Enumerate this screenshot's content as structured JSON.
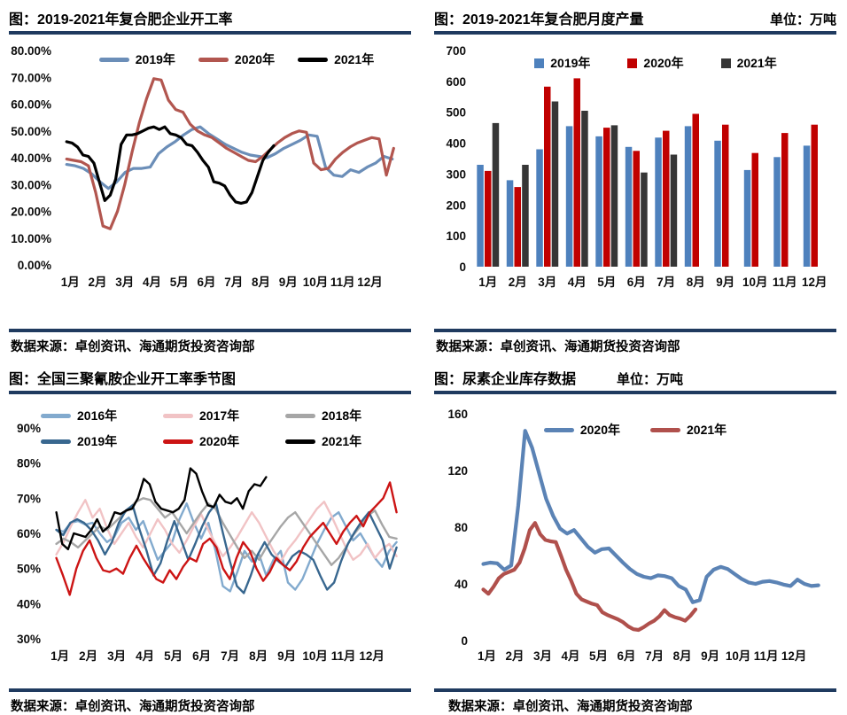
{
  "page": {
    "background": "#ffffff",
    "accent_color": "#1f3a5f"
  },
  "source_label": "数据来源：卓创资讯、海通期货投资咨询部",
  "chart_data": [
    {
      "type": "line",
      "title": "图：2019-2021年复合肥企业开工率",
      "unit": "",
      "source": "数据来源：卓创资讯、海通期货投资咨询部",
      "legend_position": "top-center",
      "grid": false,
      "ylim": [
        0,
        80
      ],
      "yticks": [
        {
          "v": 80,
          "label": "80.00%"
        },
        {
          "v": 70,
          "label": "70.00%"
        },
        {
          "v": 60,
          "label": "60.00%"
        },
        {
          "v": 50,
          "label": "50.00%"
        },
        {
          "v": 40,
          "label": "40.00%"
        },
        {
          "v": 30,
          "label": "30.00%"
        },
        {
          "v": 20,
          "label": "20.00%"
        },
        {
          "v": 10,
          "label": "10.00%"
        },
        {
          "v": 0,
          "label": "0.00%"
        }
      ],
      "x_labels": [
        "1月",
        "2月",
        "3月",
        "4月",
        "5月",
        "6月",
        "7月",
        "8月",
        "9月",
        "10月",
        "11月",
        "12月"
      ],
      "series": [
        {
          "name": "2019年",
          "color": "#6b8eb8",
          "x_start": 1,
          "x_end": 12.95,
          "values": [
            37.5,
            37,
            36,
            34,
            31,
            28.5,
            31,
            34.5,
            36,
            36,
            36.5,
            41.5,
            44,
            46,
            48.5,
            50.5,
            51.5,
            49,
            47,
            45,
            43.5,
            42,
            41,
            40.5,
            40,
            41.5,
            43.5,
            45,
            46.5,
            48.5,
            48,
            36.5,
            33.5,
            33,
            35.5,
            34.5,
            36.5,
            38,
            40.5,
            39.5
          ]
        },
        {
          "name": "2020年",
          "color": "#b2564f",
          "x_start": 1,
          "x_end": 13,
          "values": [
            39.5,
            39,
            38.5,
            37,
            27,
            14.5,
            13.5,
            20,
            30,
            42,
            53,
            62,
            69.5,
            69,
            61.5,
            58,
            57,
            52.5,
            50,
            48.5,
            47.5,
            45.5,
            43.5,
            42,
            40.5,
            39,
            38.5,
            40.5,
            43,
            45.5,
            47.5,
            49,
            50,
            49.5,
            38,
            35.5,
            36,
            39.5,
            42,
            44,
            45.5,
            46.5,
            47.5,
            47,
            33.5,
            43.5
          ]
        },
        {
          "name": "2021年",
          "color": "#000000",
          "x_start": 1,
          "x_end": 8.6,
          "values": [
            46,
            45.5,
            44,
            41,
            40.5,
            38,
            31,
            24,
            26,
            32,
            45,
            48.5,
            48.5,
            49,
            50,
            51,
            51.5,
            50.5,
            51.5,
            49,
            48.5,
            47.5,
            45,
            44.5,
            42,
            39,
            36.5,
            31,
            30.5,
            29.5,
            26,
            23.5,
            23,
            23.5,
            27,
            33,
            39,
            42,
            44.5
          ]
        }
      ]
    },
    {
      "type": "bar",
      "title": "图：2019-2021年复合肥月度产量",
      "unit": "单位：万吨",
      "source": "数据来源：卓创资讯、海通期货投资咨询部",
      "legend_position": "top-center",
      "grid": false,
      "ylim": [
        0,
        700
      ],
      "yticks": [
        {
          "v": 700,
          "label": "700"
        },
        {
          "v": 600,
          "label": "600"
        },
        {
          "v": 500,
          "label": "500"
        },
        {
          "v": 400,
          "label": "400"
        },
        {
          "v": 300,
          "label": "300"
        },
        {
          "v": 200,
          "label": "200"
        },
        {
          "v": 100,
          "label": "100"
        },
        {
          "v": 0,
          "label": "0"
        }
      ],
      "categories": [
        "1月",
        "2月",
        "3月",
        "4月",
        "5月",
        "6月",
        "7月",
        "8月",
        "9月",
        "10月",
        "11月",
        "12月"
      ],
      "series": [
        {
          "name": "2019年",
          "color": "#4e81bd",
          "values": [
            330,
            280,
            380,
            455,
            422,
            388,
            418,
            455,
            408,
            313,
            355,
            392
          ]
        },
        {
          "name": "2020年",
          "color": "#c00000",
          "values": [
            310,
            258,
            583,
            610,
            450,
            375,
            440,
            495,
            460,
            368,
            433,
            460
          ]
        },
        {
          "name": "2021年",
          "color": "#363636",
          "values": [
            465,
            330,
            535,
            505,
            458,
            305,
            363
          ]
        }
      ]
    },
    {
      "type": "line",
      "title": "图：全国三聚氰胺企业开工率季节图",
      "unit": "",
      "source": "数据来源：卓创资讯、海通期货投资咨询部",
      "legend_position": "top-grid-3col",
      "grid": false,
      "ylim": [
        30,
        90
      ],
      "yticks": [
        {
          "v": 90,
          "label": "90%"
        },
        {
          "v": 80,
          "label": "80%"
        },
        {
          "v": 70,
          "label": "70%"
        },
        {
          "v": 60,
          "label": "60%"
        },
        {
          "v": 50,
          "label": "50%"
        },
        {
          "v": 40,
          "label": "40%"
        },
        {
          "v": 30,
          "label": "30%"
        }
      ],
      "x_labels": [
        "1月",
        "2月",
        "3月",
        "4月",
        "5月",
        "6月",
        "7月",
        "8月",
        "9月",
        "10月",
        "11月",
        "12月"
      ],
      "series": [
        {
          "name": "2016年",
          "color": "#82aace",
          "x_start": 1,
          "x_end": 13,
          "values": [
            61,
            60.5,
            63,
            63.5,
            62.5,
            63,
            60,
            57.5,
            59,
            63,
            64.5,
            61,
            63.5,
            58,
            52.5,
            55,
            57.5,
            64,
            68.5,
            63,
            58.5,
            63,
            55,
            45,
            43.5,
            49,
            55,
            52,
            54,
            48,
            52.5,
            55,
            46,
            44,
            47,
            52,
            57,
            61,
            64.5,
            66,
            62,
            58,
            60,
            56.5,
            53,
            50.5,
            55,
            57.5
          ]
        },
        {
          "name": "2017年",
          "color": "#f1c3c5",
          "x_start": 1,
          "x_end": 13,
          "values": [
            54,
            57.5,
            62,
            66,
            69.5,
            64.5,
            67,
            61.5,
            57,
            60,
            63,
            59,
            56,
            60,
            64,
            61,
            57,
            54.5,
            58,
            62,
            65.5,
            61,
            57,
            53.5,
            56,
            59,
            62.5,
            66,
            63,
            59,
            55,
            52,
            55.5,
            58,
            61,
            64,
            67,
            69,
            65,
            60.5,
            56,
            52.5,
            54,
            57,
            53,
            55.5,
            57,
            53.5
          ]
        },
        {
          "name": "2018年",
          "color": "#a6a6a6",
          "x_start": 1,
          "x_end": 13,
          "values": [
            57,
            58.5,
            57.5,
            56,
            58,
            60,
            62,
            61,
            63,
            65,
            67,
            69,
            70,
            69.5,
            67,
            64.5,
            66,
            63,
            60,
            63,
            66,
            68.5,
            67,
            63,
            59.5,
            56,
            53,
            55,
            52.5,
            56,
            59,
            62,
            64.5,
            66,
            63,
            60,
            57,
            54,
            51,
            53,
            56,
            59.5,
            62,
            65,
            66.5,
            62.5,
            59,
            58.5
          ]
        },
        {
          "name": "2019年",
          "color": "#38678f",
          "x_start": 1,
          "x_end": 13,
          "values": [
            61,
            59.5,
            63,
            64,
            63,
            61,
            58,
            54,
            57.5,
            63,
            66.5,
            68,
            61,
            55,
            48,
            51.5,
            58,
            63.5,
            58,
            52.5,
            57,
            62,
            66,
            68.5,
            60,
            52,
            45,
            43,
            48,
            54,
            57.5,
            54,
            52,
            50.5,
            53.5,
            55,
            54,
            52.5,
            48,
            44,
            46,
            52,
            57,
            60.5,
            63.5,
            66,
            62,
            58,
            50,
            56
          ]
        },
        {
          "name": "2020年",
          "color": "#cc1414",
          "x_start": 1,
          "x_end": 13,
          "values": [
            53,
            48,
            42.5,
            50,
            55,
            58,
            53,
            49.5,
            49,
            50,
            48.5,
            53,
            56.5,
            53,
            50,
            47,
            46,
            49.5,
            47,
            50.5,
            53,
            52,
            57,
            58.5,
            56,
            50,
            47,
            53,
            57.5,
            55,
            50,
            46.5,
            49,
            53,
            51,
            49.5,
            52,
            56,
            59,
            61,
            63,
            60,
            57,
            60.5,
            63,
            65,
            62,
            66,
            68,
            70,
            74.5,
            66
          ]
        },
        {
          "name": "2021年",
          "color": "#000000",
          "x_start": 1,
          "x_end": 8.4,
          "values": [
            66,
            57,
            55.5,
            60,
            59.5,
            59,
            61,
            64,
            60.5,
            62,
            66,
            65.5,
            66.5,
            67,
            70,
            75.5,
            74,
            69,
            67,
            66.5,
            66,
            67,
            69.5,
            78.5,
            77,
            72,
            68,
            67.5,
            71,
            69,
            68.5,
            70,
            67,
            72,
            74,
            73.5,
            76
          ]
        }
      ]
    },
    {
      "type": "line",
      "title": "图：尿素企业库存数据",
      "unit": "单位：万吨",
      "source": "数据来源：卓创资讯、海通期货投资咨询部",
      "legend_position": "top-center",
      "grid": false,
      "ylim": [
        0,
        160
      ],
      "yticks": [
        {
          "v": 160,
          "label": "160"
        },
        {
          "v": 120,
          "label": "120"
        },
        {
          "v": 80,
          "label": "80"
        },
        {
          "v": 40,
          "label": "40"
        },
        {
          "v": 0,
          "label": "0"
        }
      ],
      "x_labels": [
        "1月",
        "2月",
        "3月",
        "4月",
        "5月",
        "6月",
        "7月",
        "8月",
        "9月",
        "10月",
        "11月",
        "12月"
      ],
      "series": [
        {
          "name": "2020年",
          "color": "#5b83b5",
          "x_start": 1,
          "x_end": 13,
          "values": [
            54,
            55,
            54.5,
            50,
            53,
            95,
            148,
            136,
            118,
            100,
            88,
            79,
            75.5,
            78,
            72,
            66,
            62,
            64.5,
            65,
            60,
            55,
            50.5,
            47,
            45,
            44,
            46,
            45.5,
            44,
            38.5,
            36,
            27,
            28.5,
            45,
            50,
            52,
            50.5,
            47,
            43.5,
            41,
            40,
            41.5,
            42,
            41,
            39.5,
            38.5,
            43,
            40,
            38.5,
            39
          ]
        },
        {
          "name": "2021年",
          "color": "#b0504c",
          "x_start": 1,
          "x_end": 8.6,
          "values": [
            36,
            33,
            38,
            44,
            47,
            48.5,
            50,
            55,
            65,
            78,
            83,
            75,
            71,
            70,
            69.5,
            60,
            50,
            42,
            33,
            29,
            27.5,
            26,
            25,
            20,
            18,
            16.5,
            15,
            13,
            10,
            8,
            7.5,
            9.5,
            12,
            14,
            17,
            21.5,
            18,
            16.5,
            15.5,
            14,
            17.5,
            22
          ]
        }
      ]
    }
  ]
}
